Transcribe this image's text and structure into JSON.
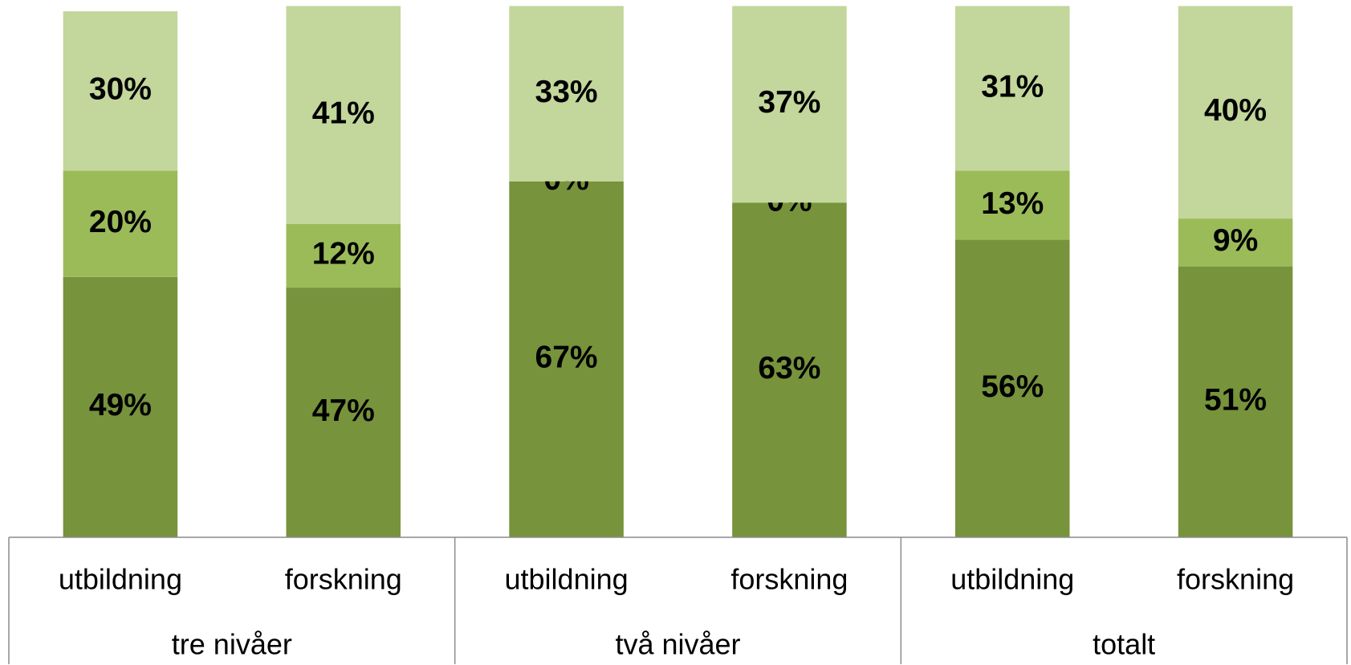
{
  "chart_data": {
    "type": "stacked-bar",
    "categories": [
      "utbildning",
      "forskning",
      "utbildning",
      "forskning",
      "utbildning",
      "forskning"
    ],
    "groups": [
      "tre nivåer",
      "två nivåer",
      "totalt"
    ],
    "series": [
      {
        "color": "#77933c",
        "values": [
          49,
          47,
          67,
          63,
          56,
          51
        ],
        "value_labels": [
          "49%",
          "47%",
          "67%",
          "63%",
          "56%",
          "51%"
        ]
      },
      {
        "color": "#9bbb59",
        "values": [
          20,
          12,
          0,
          0,
          13,
          9
        ],
        "value_labels": [
          "20%",
          "12%",
          "0%",
          "0%",
          "13%",
          "9%"
        ]
      },
      {
        "color": "#c3d69b",
        "values": [
          30,
          41,
          33,
          37,
          31,
          40
        ],
        "value_labels": [
          "30%",
          "41%",
          "33%",
          "37%",
          "31%",
          "40%"
        ]
      }
    ],
    "ylim": [
      0,
      100
    ]
  }
}
